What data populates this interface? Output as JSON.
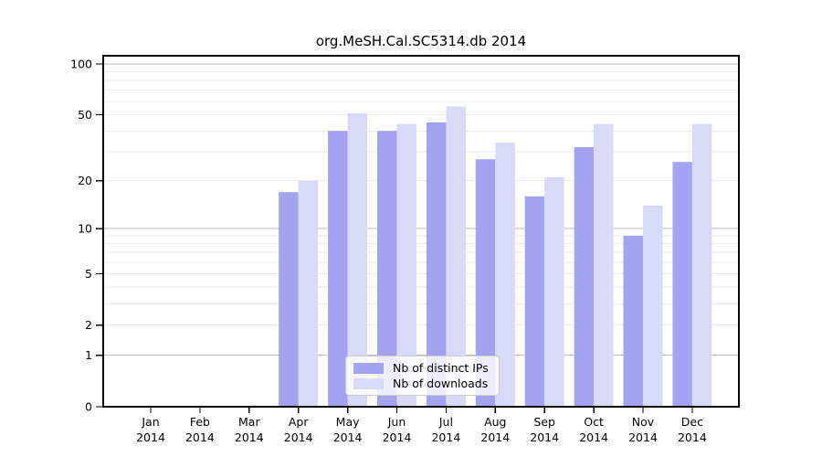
{
  "title": "org.MeSH.Cal.SC5314.db 2014",
  "chart_data": {
    "type": "bar",
    "title": "org.MeSH.Cal.SC5314.db 2014",
    "categories": [
      "Jan",
      "Feb",
      "Mar",
      "Apr",
      "May",
      "Jun",
      "Jul",
      "Aug",
      "Sep",
      "Oct",
      "Nov",
      "Dec"
    ],
    "x_tick_second_line": "2014",
    "series": [
      {
        "name": "Nb of distinct IPs",
        "color": "#a3a3f2",
        "values": [
          0,
          0,
          0,
          17,
          40,
          40,
          45,
          27,
          16,
          32,
          9,
          26
        ]
      },
      {
        "name": "Nb of downloads",
        "color": "#d9d9f8",
        "values": [
          0,
          0,
          0,
          20,
          51,
          44,
          56,
          34,
          21,
          44,
          14,
          44
        ]
      }
    ],
    "y_scale": "log10(value+1)",
    "ylim": [
      0,
      101
    ],
    "y_tick_labels": [
      0,
      1,
      2,
      5,
      10,
      20,
      50,
      100
    ],
    "y_major_gridlines": [
      1,
      10,
      100
    ],
    "y_minor_gridlines": [
      2,
      3,
      4,
      5,
      6,
      7,
      8,
      9,
      20,
      30,
      40,
      50,
      60,
      70,
      80,
      90
    ],
    "grid": true,
    "legend_position": "bottom-center",
    "colors": {
      "major_gridline": "#bdbdbd",
      "minor_gridline": "#ececec",
      "axis": "#000000",
      "background": "#ffffff"
    }
  }
}
